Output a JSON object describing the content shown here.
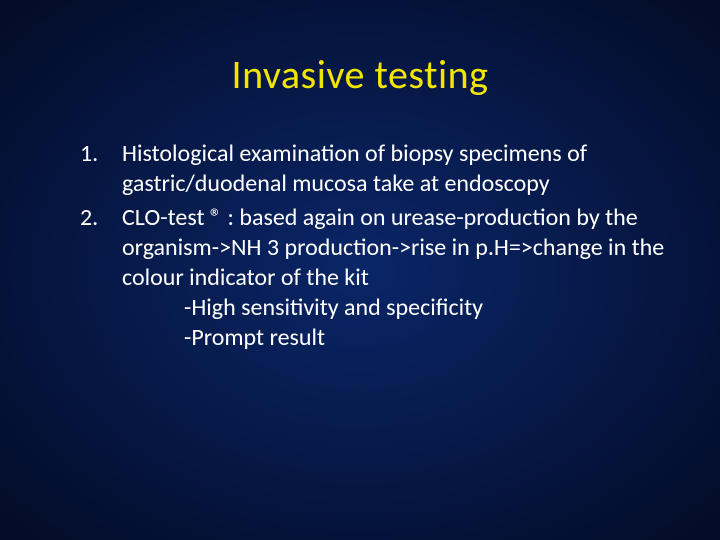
{
  "slide": {
    "title": "Invasive testing",
    "title_color": "#f2e600",
    "body_color": "#ffffff",
    "background": {
      "type": "radial-gradient",
      "inner": "#0a2668",
      "mid": "#061744",
      "outer": "#030b26"
    },
    "title_fontsize": 40,
    "body_fontsize": 24,
    "items": [
      {
        "text": "Histological examination of biopsy specimens of gastric/duodenal mucosa take at endoscopy",
        "sublines": []
      },
      {
        "text": "CLO-test ® : based again on urease-production by the organism->NH 3 production->rise in p.H=>change in the colour indicator of the kit",
        "sublines": [
          "-High sensitivity and specificity",
          "-Prompt result"
        ]
      }
    ]
  }
}
